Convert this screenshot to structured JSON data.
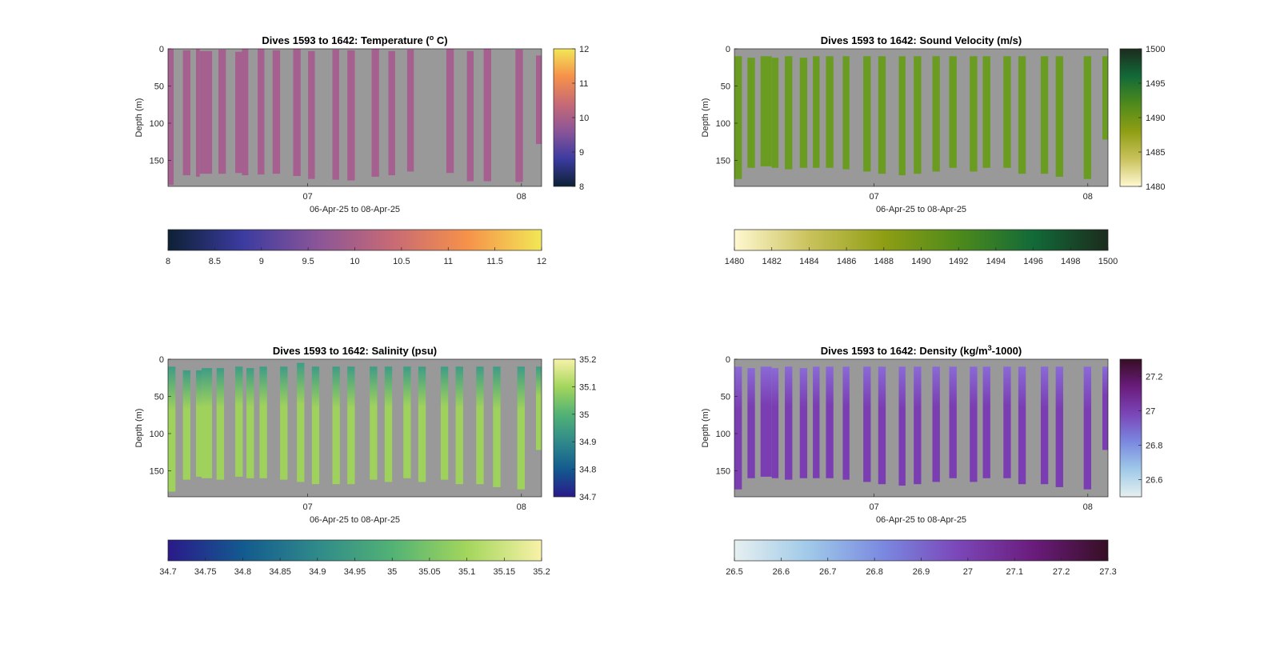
{
  "chart_data": [
    {
      "type": "heatmap",
      "title_main": "Dives 1593 to 1642: Temperature (",
      "title_sup": "o",
      "title_end": " C)",
      "xlabel": "06-Apr-25 to 08-Apr-25",
      "ylabel": "Depth (m)",
      "x_ticks": [
        "07",
        "08"
      ],
      "x_range": [
        "06-Apr-25",
        "08-Apr-25"
      ],
      "y_ticks": [
        "0",
        "50",
        "100",
        "150"
      ],
      "ylim": [
        185,
        0
      ],
      "y_reversed": true,
      "colormap": "thermal",
      "colormap_stops": [
        "#0d2135",
        "#3b3ba0",
        "#8a5598",
        "#c76a75",
        "#f6914a",
        "#f2e756"
      ],
      "background_color": "#999999",
      "clim": [
        8,
        12
      ],
      "vertical_colorbar_ticks": [
        "8",
        "9",
        "10",
        "11",
        "12"
      ],
      "horizontal_colorbar_ticks": [
        "8",
        "8.5",
        "9",
        "9.5",
        "10",
        "10.5",
        "11",
        "11.5",
        "12"
      ],
      "dive_fill_color": "#a56090",
      "dives": [
        {
          "x_start": 0.0,
          "x_end": 0.015,
          "top": 0,
          "bottom": 183
        },
        {
          "x_start": 0.04,
          "x_end": 0.06,
          "top": 2,
          "bottom": 170
        },
        {
          "x_start": 0.075,
          "x_end": 0.085,
          "top": 0,
          "bottom": 172
        },
        {
          "x_start": 0.085,
          "x_end": 0.118,
          "top": 3,
          "bottom": 168
        },
        {
          "x_start": 0.135,
          "x_end": 0.155,
          "top": 1,
          "bottom": 168
        },
        {
          "x_start": 0.18,
          "x_end": 0.198,
          "top": 4,
          "bottom": 167
        },
        {
          "x_start": 0.198,
          "x_end": 0.215,
          "top": 0,
          "bottom": 170
        },
        {
          "x_start": 0.24,
          "x_end": 0.258,
          "top": 0,
          "bottom": 169
        },
        {
          "x_start": 0.28,
          "x_end": 0.3,
          "top": 2,
          "bottom": 168
        },
        {
          "x_start": 0.335,
          "x_end": 0.355,
          "top": 0,
          "bottom": 171
        },
        {
          "x_start": 0.375,
          "x_end": 0.393,
          "top": 3,
          "bottom": 175
        },
        {
          "x_start": 0.44,
          "x_end": 0.458,
          "top": 1,
          "bottom": 176
        },
        {
          "x_start": 0.48,
          "x_end": 0.5,
          "top": 2,
          "bottom": 177
        },
        {
          "x_start": 0.545,
          "x_end": 0.565,
          "top": 0,
          "bottom": 172
        },
        {
          "x_start": 0.59,
          "x_end": 0.608,
          "top": 3,
          "bottom": 170
        },
        {
          "x_start": 0.64,
          "x_end": 0.658,
          "top": 1,
          "bottom": 165
        },
        {
          "x_start": 0.745,
          "x_end": 0.765,
          "top": 0,
          "bottom": 167
        },
        {
          "x_start": 0.8,
          "x_end": 0.818,
          "top": 3,
          "bottom": 178
        },
        {
          "x_start": 0.845,
          "x_end": 0.865,
          "top": 0,
          "bottom": 178
        },
        {
          "x_start": 0.93,
          "x_end": 0.95,
          "top": 1,
          "bottom": 179
        },
        {
          "x_start": 0.985,
          "x_end": 1.0,
          "top": 9,
          "bottom": 128
        }
      ]
    },
    {
      "type": "heatmap",
      "title_main": "Dives 1593 to 1642: Sound Velocity (m/s)",
      "title_sup": "",
      "title_end": "",
      "xlabel": "06-Apr-25 to 08-Apr-25",
      "ylabel": "Depth (m)",
      "x_ticks": [
        "07",
        "08"
      ],
      "x_range": [
        "06-Apr-25",
        "08-Apr-25"
      ],
      "y_ticks": [
        "0",
        "50",
        "100",
        "150"
      ],
      "ylim": [
        185,
        0
      ],
      "y_reversed": true,
      "colormap": "speed",
      "colormap_stops": [
        "#fff8d1",
        "#c9c25c",
        "#8f9e14",
        "#4e8a1b",
        "#126a38",
        "#1c2b1d"
      ],
      "background_color": "#999999",
      "clim": [
        1480,
        1500
      ],
      "vertical_colorbar_ticks": [
        "1480",
        "1485",
        "1490",
        "1495",
        "1500"
      ],
      "horizontal_colorbar_ticks": [
        "1480",
        "1482",
        "1484",
        "1486",
        "1488",
        "1490",
        "1492",
        "1494",
        "1496",
        "1498",
        "1500"
      ],
      "dive_fill_color": "#6a9c22",
      "dives": [
        {
          "x_start": 0.0,
          "x_end": 0.02,
          "top": 10,
          "bottom": 175
        },
        {
          "x_start": 0.035,
          "x_end": 0.055,
          "top": 12,
          "bottom": 160
        },
        {
          "x_start": 0.07,
          "x_end": 0.1,
          "top": 10,
          "bottom": 158
        },
        {
          "x_start": 0.1,
          "x_end": 0.118,
          "top": 12,
          "bottom": 160
        },
        {
          "x_start": 0.135,
          "x_end": 0.155,
          "top": 10,
          "bottom": 162
        },
        {
          "x_start": 0.175,
          "x_end": 0.195,
          "top": 12,
          "bottom": 160
        },
        {
          "x_start": 0.21,
          "x_end": 0.228,
          "top": 10,
          "bottom": 160
        },
        {
          "x_start": 0.245,
          "x_end": 0.265,
          "top": 10,
          "bottom": 160
        },
        {
          "x_start": 0.29,
          "x_end": 0.308,
          "top": 10,
          "bottom": 162
        },
        {
          "x_start": 0.345,
          "x_end": 0.365,
          "top": 10,
          "bottom": 165
        },
        {
          "x_start": 0.385,
          "x_end": 0.405,
          "top": 10,
          "bottom": 168
        },
        {
          "x_start": 0.44,
          "x_end": 0.458,
          "top": 10,
          "bottom": 170
        },
        {
          "x_start": 0.48,
          "x_end": 0.5,
          "top": 10,
          "bottom": 168
        },
        {
          "x_start": 0.53,
          "x_end": 0.55,
          "top": 10,
          "bottom": 165
        },
        {
          "x_start": 0.575,
          "x_end": 0.595,
          "top": 10,
          "bottom": 160
        },
        {
          "x_start": 0.63,
          "x_end": 0.65,
          "top": 10,
          "bottom": 165
        },
        {
          "x_start": 0.665,
          "x_end": 0.685,
          "top": 10,
          "bottom": 160
        },
        {
          "x_start": 0.72,
          "x_end": 0.74,
          "top": 10,
          "bottom": 160
        },
        {
          "x_start": 0.76,
          "x_end": 0.78,
          "top": 10,
          "bottom": 168
        },
        {
          "x_start": 0.82,
          "x_end": 0.84,
          "top": 10,
          "bottom": 168
        },
        {
          "x_start": 0.86,
          "x_end": 0.88,
          "top": 10,
          "bottom": 172
        },
        {
          "x_start": 0.935,
          "x_end": 0.955,
          "top": 10,
          "bottom": 175
        },
        {
          "x_start": 0.985,
          "x_end": 1.0,
          "top": 10,
          "bottom": 122
        }
      ]
    },
    {
      "type": "heatmap",
      "title_main": "Dives 1593 to 1642: Salinity (psu)",
      "title_sup": "",
      "title_end": "",
      "xlabel": "06-Apr-25 to 08-Apr-25",
      "ylabel": "Depth (m)",
      "x_ticks": [
        "07",
        "08"
      ],
      "x_range": [
        "06-Apr-25",
        "08-Apr-25"
      ],
      "y_ticks": [
        "0",
        "50",
        "100",
        "150"
      ],
      "ylim": [
        185,
        0
      ],
      "y_reversed": true,
      "colormap": "haline",
      "colormap_stops": [
        "#2a1a8a",
        "#135a8f",
        "#2f8a8a",
        "#52b275",
        "#a3d65c",
        "#f8f2a8"
      ],
      "background_color": "#999999",
      "clim": [
        34.7,
        35.2
      ],
      "vertical_colorbar_ticks": [
        "34.7",
        "34.8",
        "34.9",
        "35",
        "35.1",
        "35.2"
      ],
      "horizontal_colorbar_ticks": [
        "34.7",
        "34.75",
        "34.8",
        "34.85",
        "34.9",
        "34.95",
        "35",
        "35.05",
        "35.1",
        "35.15",
        "35.2"
      ],
      "dive_fill_color": "#9fd15d",
      "dive_top_color": "#3e9c86",
      "dives": [
        {
          "x_start": 0.0,
          "x_end": 0.02,
          "top": 10,
          "bottom": 178
        },
        {
          "x_start": 0.04,
          "x_end": 0.06,
          "top": 15,
          "bottom": 162
        },
        {
          "x_start": 0.075,
          "x_end": 0.09,
          "top": 15,
          "bottom": 158
        },
        {
          "x_start": 0.09,
          "x_end": 0.118,
          "top": 12,
          "bottom": 160
        },
        {
          "x_start": 0.13,
          "x_end": 0.15,
          "top": 12,
          "bottom": 162
        },
        {
          "x_start": 0.18,
          "x_end": 0.2,
          "top": 10,
          "bottom": 158
        },
        {
          "x_start": 0.21,
          "x_end": 0.23,
          "top": 12,
          "bottom": 160
        },
        {
          "x_start": 0.245,
          "x_end": 0.265,
          "top": 10,
          "bottom": 160
        },
        {
          "x_start": 0.3,
          "x_end": 0.32,
          "top": 10,
          "bottom": 162
        },
        {
          "x_start": 0.345,
          "x_end": 0.365,
          "top": 5,
          "bottom": 165
        },
        {
          "x_start": 0.385,
          "x_end": 0.405,
          "top": 10,
          "bottom": 168
        },
        {
          "x_start": 0.44,
          "x_end": 0.46,
          "top": 10,
          "bottom": 168
        },
        {
          "x_start": 0.48,
          "x_end": 0.5,
          "top": 10,
          "bottom": 168
        },
        {
          "x_start": 0.54,
          "x_end": 0.56,
          "top": 10,
          "bottom": 162
        },
        {
          "x_start": 0.58,
          "x_end": 0.6,
          "top": 10,
          "bottom": 165
        },
        {
          "x_start": 0.63,
          "x_end": 0.65,
          "top": 10,
          "bottom": 160
        },
        {
          "x_start": 0.67,
          "x_end": 0.69,
          "top": 10,
          "bottom": 165
        },
        {
          "x_start": 0.73,
          "x_end": 0.75,
          "top": 10,
          "bottom": 162
        },
        {
          "x_start": 0.77,
          "x_end": 0.79,
          "top": 10,
          "bottom": 168
        },
        {
          "x_start": 0.825,
          "x_end": 0.845,
          "top": 10,
          "bottom": 168
        },
        {
          "x_start": 0.87,
          "x_end": 0.89,
          "top": 10,
          "bottom": 172
        },
        {
          "x_start": 0.935,
          "x_end": 0.955,
          "top": 10,
          "bottom": 175
        },
        {
          "x_start": 0.985,
          "x_end": 1.0,
          "top": 10,
          "bottom": 122
        }
      ]
    },
    {
      "type": "heatmap",
      "title_main": "Dives 1593 to 1642: Density (kg/m",
      "title_sup": "3",
      "title_end": "-1000)",
      "xlabel": "06-Apr-25 to 08-Apr-25",
      "ylabel": "Depth (m)",
      "x_ticks": [
        "07",
        "08"
      ],
      "x_range": [
        "06-Apr-25",
        "08-Apr-25"
      ],
      "y_ticks": [
        "0",
        "50",
        "100",
        "150"
      ],
      "ylim": [
        185,
        0
      ],
      "y_reversed": true,
      "colormap": "dense",
      "colormap_stops": [
        "#e6f0f0",
        "#9fc9e8",
        "#7a88e0",
        "#7b46b8",
        "#6a1c7c",
        "#360e24"
      ],
      "background_color": "#999999",
      "clim": [
        26.5,
        27.3
      ],
      "vertical_colorbar_ticks": [
        "26.6",
        "26.8",
        "27",
        "27.2"
      ],
      "horizontal_colorbar_ticks": [
        "26.5",
        "26.6",
        "26.7",
        "26.8",
        "26.9",
        "27",
        "27.1",
        "27.2",
        "27.3"
      ],
      "dive_fill_color": "#7a3eb2",
      "dive_top_color": "#8a6ad6",
      "dives": [
        {
          "x_start": 0.0,
          "x_end": 0.02,
          "top": 10,
          "bottom": 175
        },
        {
          "x_start": 0.035,
          "x_end": 0.055,
          "top": 12,
          "bottom": 160
        },
        {
          "x_start": 0.07,
          "x_end": 0.1,
          "top": 10,
          "bottom": 158
        },
        {
          "x_start": 0.1,
          "x_end": 0.118,
          "top": 12,
          "bottom": 160
        },
        {
          "x_start": 0.135,
          "x_end": 0.155,
          "top": 10,
          "bottom": 162
        },
        {
          "x_start": 0.175,
          "x_end": 0.195,
          "top": 12,
          "bottom": 160
        },
        {
          "x_start": 0.21,
          "x_end": 0.228,
          "top": 10,
          "bottom": 160
        },
        {
          "x_start": 0.245,
          "x_end": 0.265,
          "top": 10,
          "bottom": 160
        },
        {
          "x_start": 0.29,
          "x_end": 0.308,
          "top": 10,
          "bottom": 162
        },
        {
          "x_start": 0.345,
          "x_end": 0.365,
          "top": 10,
          "bottom": 165
        },
        {
          "x_start": 0.385,
          "x_end": 0.405,
          "top": 10,
          "bottom": 168
        },
        {
          "x_start": 0.44,
          "x_end": 0.458,
          "top": 10,
          "bottom": 170
        },
        {
          "x_start": 0.48,
          "x_end": 0.5,
          "top": 10,
          "bottom": 168
        },
        {
          "x_start": 0.53,
          "x_end": 0.55,
          "top": 10,
          "bottom": 165
        },
        {
          "x_start": 0.575,
          "x_end": 0.595,
          "top": 10,
          "bottom": 160
        },
        {
          "x_start": 0.63,
          "x_end": 0.65,
          "top": 10,
          "bottom": 165
        },
        {
          "x_start": 0.665,
          "x_end": 0.685,
          "top": 10,
          "bottom": 160
        },
        {
          "x_start": 0.72,
          "x_end": 0.74,
          "top": 10,
          "bottom": 160
        },
        {
          "x_start": 0.76,
          "x_end": 0.78,
          "top": 10,
          "bottom": 168
        },
        {
          "x_start": 0.82,
          "x_end": 0.84,
          "top": 10,
          "bottom": 168
        },
        {
          "x_start": 0.86,
          "x_end": 0.88,
          "top": 10,
          "bottom": 172
        },
        {
          "x_start": 0.935,
          "x_end": 0.955,
          "top": 10,
          "bottom": 175
        },
        {
          "x_start": 0.985,
          "x_end": 1.0,
          "top": 10,
          "bottom": 122
        }
      ]
    }
  ]
}
